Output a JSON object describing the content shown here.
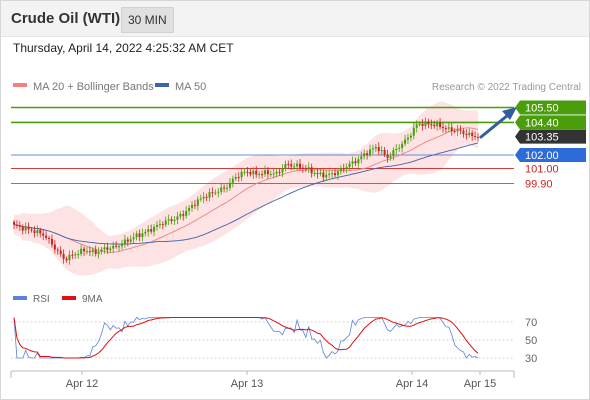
{
  "header": {
    "title": "Crude Oil (WTI)",
    "interval": "30 MIN"
  },
  "timestamp": "Thursday, April 14, 2022 4:25:32 AM CET",
  "legend": {
    "ma20_label": "MA 20 + Bollinger Bands",
    "ma50_label": "MA 50",
    "copyright": "Research © 2022 Trading Central"
  },
  "levels": [
    {
      "label": "105.50",
      "price": 105.5,
      "kind": "resistance"
    },
    {
      "label": "104.40",
      "price": 104.4,
      "kind": "resistance"
    },
    {
      "label": "103.35",
      "price": 103.35,
      "kind": "current"
    },
    {
      "label": "102.00",
      "price": 102.0,
      "kind": "pivot"
    },
    {
      "label": "101.00",
      "price": 101.0,
      "kind": "support"
    },
    {
      "label": "99.90",
      "price": 99.9,
      "kind": "support"
    }
  ],
  "rsi": {
    "rsi_label": "RSI",
    "ma_label": "9MA",
    "ticks": [
      "70",
      "50",
      "30"
    ]
  },
  "x_axis": [
    "Apr 12",
    "Apr 13",
    "Apr 14",
    "Apr 15"
  ],
  "colors": {
    "resistance": "#4a9e0b",
    "pivot": "#2d6bd9",
    "support": "#cc2222",
    "current": "#333333",
    "ma20": "#f08080",
    "ma50": "#3f62a8",
    "band": "#fcd9d9",
    "up": "#4a9e0b",
    "down": "#cc2222",
    "arrow": "#2f5f9e",
    "rsi": "#5b83dd",
    "rsi_ma": "#dd1111"
  },
  "chart_data": {
    "type": "candlestick",
    "x": [
      "Apr 12",
      "Apr 13",
      "Apr 14",
      "Apr 15"
    ],
    "price_levels": [
      105.5,
      104.4,
      103.35,
      102.0,
      101.0,
      99.9
    ],
    "last_price": 103.35,
    "projection": "up toward 105.50",
    "price_path": [
      96.8,
      96.6,
      96.4,
      96.1,
      95.2,
      94.3,
      94.7,
      95.0,
      94.8,
      95.1,
      95.2,
      95.6,
      96.0,
      96.3,
      96.7,
      97.1,
      97.3,
      97.8,
      98.5,
      99.0,
      99.3,
      99.6,
      100.4,
      100.8,
      100.6,
      100.7,
      100.6,
      101.3,
      101.2,
      101.0,
      100.6,
      100.5,
      100.7,
      101.2,
      101.6,
      102.2,
      102.6,
      101.8,
      102.5,
      103.2,
      104.3,
      104.3,
      104.2,
      103.9,
      103.8,
      103.5,
      103.35
    ],
    "rsi_ticks": [
      70,
      50,
      30
    ]
  }
}
